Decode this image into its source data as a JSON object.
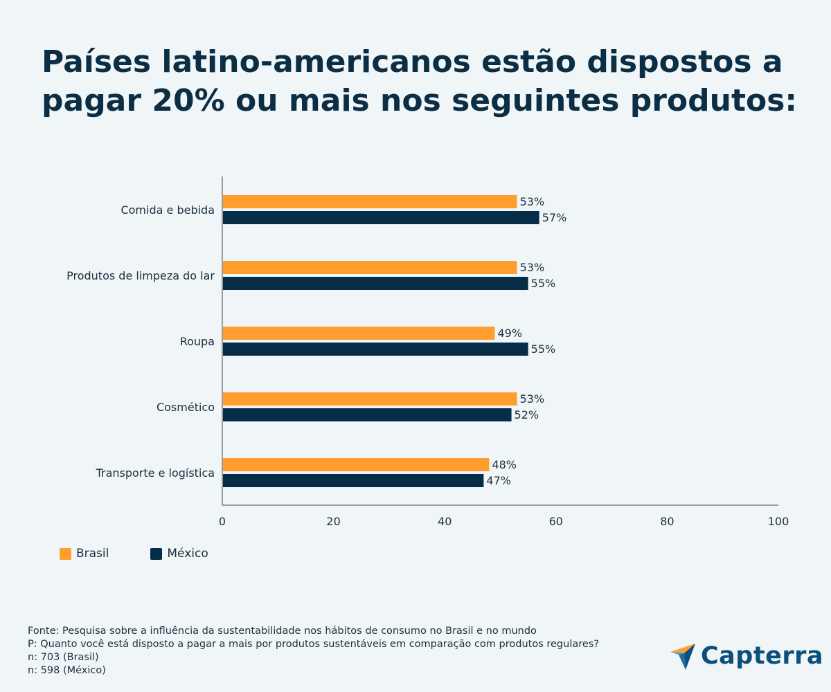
{
  "chart_data": {
    "type": "bar",
    "orientation": "horizontal",
    "title_lines": [
      "Países latino-americanos estão dispostos a",
      "pagar 20% ou mais nos seguintes produtos:"
    ],
    "categories": [
      "Comida e bebida",
      "Produtos de limpeza do lar",
      "Roupa",
      "Cosmético",
      "Transporte e logística"
    ],
    "series": [
      {
        "name": "Brasil",
        "color": "#ff9e2f",
        "values": [
          53,
          53,
          49,
          53,
          48
        ],
        "labels": [
          "53%",
          "53%",
          "49%",
          "53%",
          "48%"
        ]
      },
      {
        "name": "México",
        "color": "#052d47",
        "values": [
          57,
          55,
          55,
          52,
          47
        ],
        "labels": [
          "57%",
          "55%",
          "55%",
          "52%",
          "47%"
        ]
      }
    ],
    "xlim": [
      0,
      100
    ],
    "xticks": [
      0,
      20,
      40,
      60,
      80,
      100
    ],
    "xtick_labels": [
      "0",
      "20",
      "40",
      "60",
      "80",
      "100"
    ],
    "legend_position": "bottom-left"
  },
  "notes": [
    "Fonte: Pesquisa sobre a influência da sustentabilidade nos hábitos de consumo no Brasil e no mundo",
    "P: Quanto você está disposto a pagar a mais por produtos sustentáveis em comparação com produtos regulares?",
    "n: 703 (Brasil)",
    "n: 598 (México)"
  ],
  "brand": {
    "name": "Capterra"
  }
}
